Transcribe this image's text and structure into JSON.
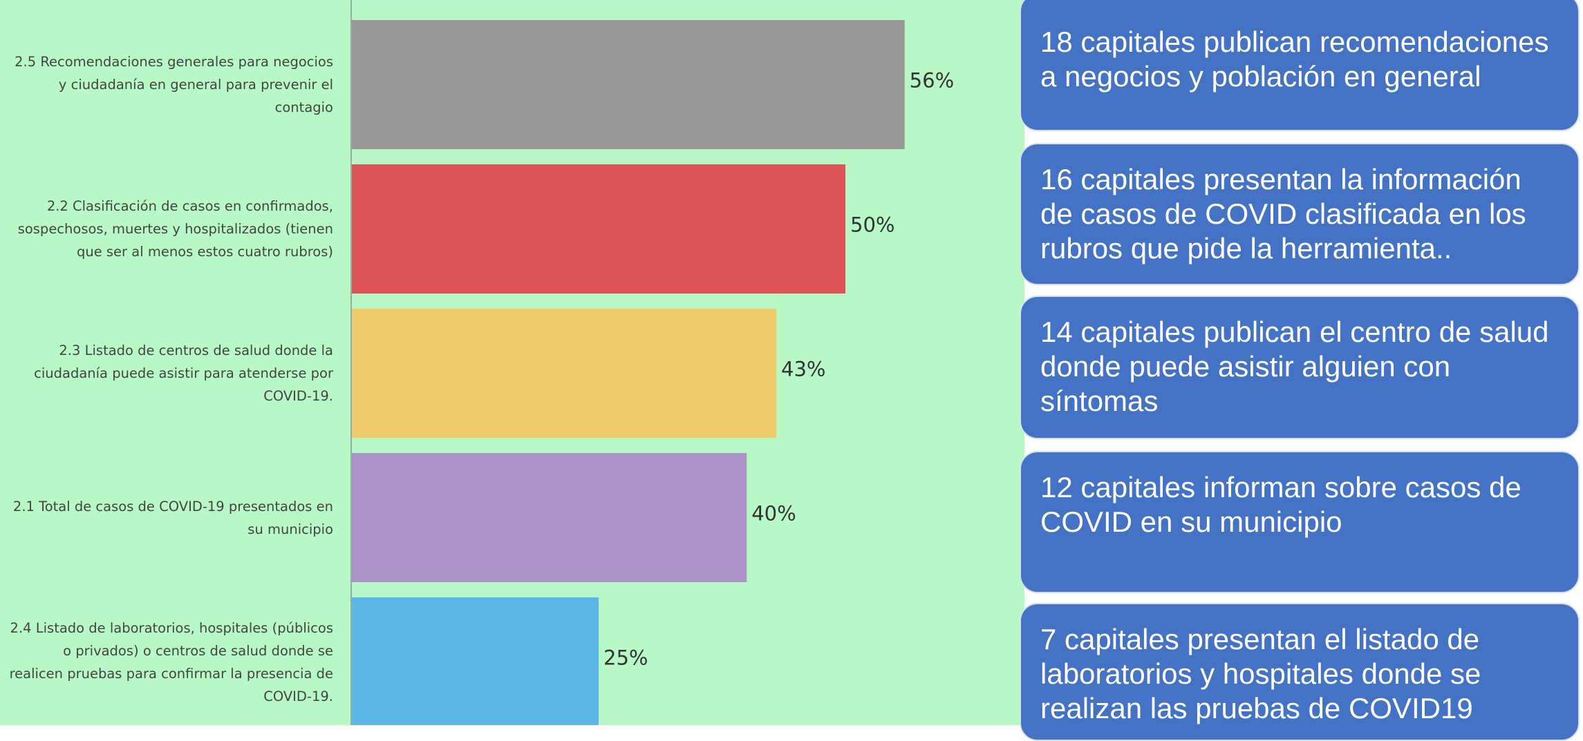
{
  "chart_data": {
    "type": "bar",
    "categories": [
      "2.5 Recomendaciones generales para negocios y ciudadanía en general para prevenir el contagio",
      "2.2 Clasificación de casos en confirmados, sospechosos, muertes y hospitalizados (tienen que ser al menos estos cuatro rubros)",
      "2.3 Listado de centros de salud donde la ciudadanía puede asistir para atenderse por COVID-19.",
      "2.1 Total de casos de COVID-19 presentados en su municipio",
      "2.4 Listado de laboratorios, hospitales (públicos o privados) o centros de salud donde se realicen pruebas para confirmar la presencia de COVID-19."
    ],
    "values": [
      56,
      50,
      43,
      40,
      25
    ],
    "value_labels": [
      "56%",
      "50%",
      "43%",
      "40%",
      "25%"
    ],
    "colors": [
      "#999999",
      "#dc5257",
      "#efca6a",
      "#ab92c6",
      "#5db7e6"
    ]
  },
  "callouts": [
    "18 capitales publican recomendaciones a negocios y población en general",
    "16 capitales presentan la información de casos de COVID  clasificada en los rubros que pide la herramienta..",
    "14 capitales publican el centro de salud donde puede asistir alguien con síntomas",
    "12 capitales informan sobre casos de COVID en su municipio",
    "7 capitales presentan el listado de laboratorios y hospitales donde se realizan las pruebas de COVID19"
  ]
}
